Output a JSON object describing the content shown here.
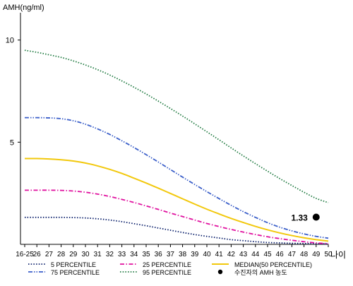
{
  "chart_data": {
    "type": "line",
    "ylabel": "AMH(ng/ml)",
    "xlabel": "나이",
    "ylim": [
      0,
      11.2
    ],
    "y_ticks": [
      5,
      10
    ],
    "categories": [
      "16-25",
      "26",
      "27",
      "28",
      "29",
      "30",
      "31",
      "32",
      "33",
      "34",
      "35",
      "36",
      "37",
      "38",
      "39",
      "40",
      "41",
      "42",
      "43",
      "44",
      "45",
      "46",
      "47",
      "48",
      "49",
      "50"
    ],
    "series": [
      {
        "name": "5 PERCENTILE",
        "color": "#0a1f6b",
        "dash": "dot",
        "values": [
          1.32,
          1.32,
          1.32,
          1.32,
          1.31,
          1.29,
          1.25,
          1.19,
          1.11,
          1.01,
          0.91,
          0.8,
          0.69,
          0.58,
          0.48,
          0.39,
          0.31,
          0.23,
          0.18,
          0.13,
          0.09,
          0.07,
          0.05,
          0.04,
          0.03,
          0.02
        ]
      },
      {
        "name": "25 PERCENTILE",
        "color": "#e0119f",
        "dash": "dashdot",
        "values": [
          2.65,
          2.65,
          2.65,
          2.64,
          2.61,
          2.55,
          2.46,
          2.34,
          2.2,
          2.05,
          1.88,
          1.71,
          1.53,
          1.36,
          1.19,
          1.02,
          0.87,
          0.73,
          0.6,
          0.48,
          0.37,
          0.28,
          0.2,
          0.13,
          0.07,
          0.03
        ]
      },
      {
        "name": "MEDIAN(50 PERCENTILE)",
        "color": "#f2c80c",
        "dash": "solid",
        "values": [
          4.2,
          4.2,
          4.18,
          4.14,
          4.08,
          3.98,
          3.84,
          3.67,
          3.47,
          3.24,
          3.0,
          2.75,
          2.49,
          2.23,
          1.97,
          1.72,
          1.49,
          1.27,
          1.07,
          0.88,
          0.71,
          0.56,
          0.43,
          0.32,
          0.23,
          0.16
        ]
      },
      {
        "name": "75 PERCENTILE",
        "color": "#3b5fc9",
        "dash": "dashdotdot",
        "values": [
          6.2,
          6.2,
          6.19,
          6.15,
          6.05,
          5.88,
          5.65,
          5.38,
          5.07,
          4.74,
          4.39,
          4.03,
          3.66,
          3.29,
          2.93,
          2.58,
          2.24,
          1.91,
          1.6,
          1.32,
          1.06,
          0.84,
          0.66,
          0.51,
          0.39,
          0.3
        ]
      },
      {
        "name": "95 PERCENTILE",
        "color": "#1f7a40",
        "dash": "dot",
        "values": [
          9.5,
          9.4,
          9.28,
          9.15,
          8.98,
          8.78,
          8.55,
          8.29,
          8.0,
          7.69,
          7.36,
          7.01,
          6.65,
          6.28,
          5.9,
          5.51,
          5.12,
          4.72,
          4.33,
          3.95,
          3.58,
          3.22,
          2.88,
          2.55,
          2.25,
          2.04
        ]
      }
    ],
    "patient": {
      "label": "수진자의 AMH 농도",
      "category": "49",
      "value": 1.33,
      "display": "1.33",
      "color": "#000000"
    },
    "legend": {
      "placement": "bottom",
      "columns": 3
    }
  }
}
